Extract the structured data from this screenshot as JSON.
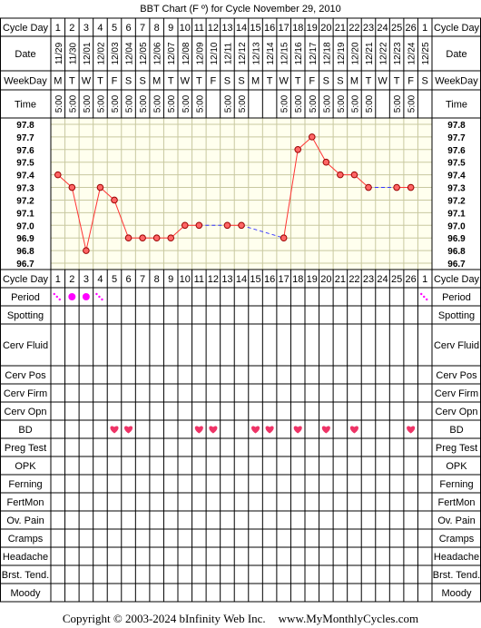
{
  "title": "BBT Chart (F º) for Cycle November 29, 2010",
  "copyright": "Copyright © 2003-2024 bInfinity Web Inc.",
  "website": "www.MyMonthlyCycles.com",
  "row_labels": {
    "cycle_day": "Cycle Day",
    "date": "Date",
    "weekday": "WeekDay",
    "time": "Time"
  },
  "symptom_rows": [
    "Period",
    "Spotting",
    "Cerv Fluid",
    "Cerv Pos",
    "Cerv Firm",
    "Cerv Opn",
    "BD",
    "Preg Test",
    "OPK",
    "Ferning",
    "FertMon",
    "Ov. Pain",
    "Cramps",
    "Headache",
    "Brst. Tend.",
    "Moody"
  ],
  "colors": {
    "grid": "#000000",
    "plot_bg": "#ffffee",
    "plot_grid": "#c8c8a0",
    "line": "#ff3333",
    "marker_fill": "#ff6666",
    "marker_stroke": "#990000",
    "gap_line": "#3333ff",
    "period": "#ff00ff",
    "heart": "#ee3366"
  },
  "chart_data": {
    "type": "line",
    "title": "BBT Chart (F º) for Cycle November 29, 2010",
    "cycle_days": [
      "1",
      "2",
      "3",
      "4",
      "5",
      "6",
      "7",
      "8",
      "9",
      "10",
      "11",
      "12",
      "13",
      "14",
      "15",
      "16",
      "17",
      "18",
      "19",
      "20",
      "21",
      "22",
      "23",
      "24",
      "25",
      "26",
      "1"
    ],
    "dates": [
      "11/29",
      "11/30",
      "12/01",
      "12/02",
      "12/03",
      "12/04",
      "12/05",
      "12/06",
      "12/07",
      "12/08",
      "12/09",
      "12/10",
      "12/11",
      "12/12",
      "12/13",
      "12/14",
      "12/15",
      "12/16",
      "12/17",
      "12/18",
      "12/19",
      "12/20",
      "12/21",
      "12/22",
      "12/23",
      "12/24",
      "12/25"
    ],
    "weekdays": [
      "M",
      "T",
      "W",
      "T",
      "F",
      "S",
      "S",
      "M",
      "T",
      "W",
      "T",
      "F",
      "S",
      "S",
      "M",
      "T",
      "W",
      "T",
      "F",
      "S",
      "S",
      "M",
      "T",
      "W",
      "T",
      "F",
      "S"
    ],
    "times": [
      "5:00",
      "5:00",
      "5:00",
      "5:00",
      "5:00",
      "5:00",
      "5:00",
      "5:00",
      "5:00",
      "5:00",
      "5:00",
      "",
      "5:00",
      "5:00",
      "",
      "",
      "5:00",
      "5:00",
      "5:00",
      "5:00",
      "5:00",
      "5:00",
      "5:00",
      "",
      "5:00",
      "5:00",
      ""
    ],
    "temperature_ticks": [
      "97.8",
      "97.7",
      "97.6",
      "97.5",
      "97.4",
      "97.3",
      "97.2",
      "97.1",
      "97.0",
      "96.9",
      "96.8",
      "96.7"
    ],
    "ylim": [
      96.7,
      97.8
    ],
    "series": [
      {
        "values": [
          97.4,
          97.3,
          96.8,
          97.3,
          97.2,
          96.9,
          96.9,
          96.9,
          96.9,
          97.0,
          97.0,
          null,
          97.0,
          97.0,
          null,
          null,
          96.9,
          97.6,
          97.7,
          97.5,
          97.4,
          97.4,
          97.3,
          null,
          97.3,
          97.3,
          null
        ]
      }
    ],
    "period": [
      "light",
      "heavy",
      "heavy",
      "light",
      "",
      "",
      "",
      "",
      "",
      "",
      "",
      "",
      "",
      "",
      "",
      "",
      "",
      "",
      "",
      "",
      "",
      "",
      "",
      "",
      "",
      "",
      "light"
    ],
    "bd": [
      false,
      false,
      false,
      false,
      true,
      true,
      false,
      false,
      false,
      false,
      true,
      true,
      false,
      false,
      true,
      true,
      false,
      true,
      false,
      true,
      false,
      true,
      false,
      false,
      false,
      true,
      false
    ],
    "grid": true
  }
}
